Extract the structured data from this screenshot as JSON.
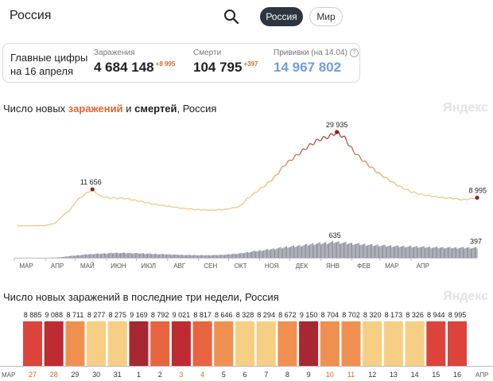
{
  "search": {
    "value": "Россия"
  },
  "scope": {
    "russia": "Россия",
    "world": "Мир"
  },
  "summary": {
    "label_line1": "Главные цифры",
    "label_line2": "на 16 апреля",
    "infections": {
      "caption": "Заражения",
      "value": "4 684 148",
      "delta": "+8 995"
    },
    "deaths": {
      "caption": "Смерти",
      "value": "104 795",
      "delta": "+397"
    },
    "vaccinations": {
      "caption": "Прививки (на 14.04)",
      "value": "14 967 802",
      "help": "?"
    }
  },
  "watermark": "Яндекс",
  "colors": {
    "infections_light": "#f2c57a",
    "infections_dark": "#b23a2e",
    "deaths": "#6b6f80",
    "accent": "#e0672d",
    "vaccine": "#6e9fe0"
  },
  "chart_data": [
    {
      "type": "line",
      "title_parts": [
        "Число новых ",
        "заражений",
        " и ",
        "смертей",
        ", Россия"
      ],
      "months": [
        "МАР",
        "АПР",
        "МАЙ",
        "ИЮН",
        "ИЮЛ",
        "АВГ",
        "СЕН",
        "ОКТ",
        "НОЯ",
        "ДЕК",
        "ЯНВ",
        "ФЕВ",
        "МАР",
        "АПР"
      ],
      "series": [
        {
          "name": "заражений",
          "points": [
            [
              3,
              0
            ],
            [
              30,
              100
            ],
            [
              40,
              700
            ],
            [
              43,
              1500
            ],
            [
              48,
              3200
            ],
            [
              56,
              5200
            ],
            [
              62,
              8000
            ],
            [
              66,
              9000
            ],
            [
              72,
              10400
            ],
            [
              78,
              11656
            ],
            [
              85,
              9600
            ],
            [
              95,
              8900
            ],
            [
              110,
              8800
            ],
            [
              125,
              7900
            ],
            [
              140,
              6900
            ],
            [
              155,
              6200
            ],
            [
              168,
              5600
            ],
            [
              182,
              5200
            ],
            [
              196,
              5000
            ],
            [
              212,
              5300
            ],
            [
              225,
              6200
            ],
            [
              232,
              8500
            ],
            [
              240,
              10500
            ],
            [
              250,
              12800
            ],
            [
              260,
              15600
            ],
            [
              270,
              19500
            ],
            [
              282,
              22500
            ],
            [
              294,
              25500
            ],
            [
              304,
              27500
            ],
            [
              314,
              28500
            ],
            [
              322,
              29935
            ],
            [
              330,
              28000
            ],
            [
              338,
              24000
            ],
            [
              346,
              21500
            ],
            [
              355,
              19000
            ],
            [
              365,
              16500
            ],
            [
              375,
              14500
            ],
            [
              385,
              12500
            ],
            [
              395,
              11000
            ],
            [
              405,
              10100
            ],
            [
              416,
              9500
            ],
            [
              428,
              9000
            ],
            [
              440,
              8700
            ],
            [
              448,
              8300
            ],
            [
              456,
              8700
            ],
            [
              462,
              8995
            ]
          ]
        },
        {
          "name": "смертей",
          "points": [
            [
              3,
              0
            ],
            [
              34,
              2
            ],
            [
              41,
              5
            ],
            [
              48,
              30
            ],
            [
              56,
              70
            ],
            [
              64,
              100
            ],
            [
              72,
              130
            ],
            [
              80,
              150
            ],
            [
              90,
              170
            ],
            [
              100,
              190
            ],
            [
              110,
              190
            ],
            [
              125,
              175
            ],
            [
              140,
              150
            ],
            [
              155,
              130
            ],
            [
              170,
              110
            ],
            [
              185,
              100
            ],
            [
              195,
              98
            ],
            [
              210,
              120
            ],
            [
              225,
              170
            ],
            [
              240,
              260
            ],
            [
              255,
              330
            ],
            [
              270,
              420
            ],
            [
              285,
              480
            ],
            [
              300,
              560
            ],
            [
              314,
              600
            ],
            [
              320,
              635
            ],
            [
              330,
              590
            ],
            [
              345,
              540
            ],
            [
              360,
              500
            ],
            [
              380,
              460
            ],
            [
              400,
              440
            ],
            [
              420,
              410
            ],
            [
              440,
              397
            ],
            [
              462,
              397
            ]
          ]
        }
      ],
      "annotations": [
        {
          "series": "заражений",
          "value": 11656,
          "label": "11 656"
        },
        {
          "series": "заражений",
          "value": 29935,
          "label": "29 935"
        },
        {
          "series": "заражений",
          "value": 8995,
          "label": "8 995"
        },
        {
          "series": "смертей",
          "value": 635,
          "label": "635"
        },
        {
          "series": "смертей",
          "value": 397,
          "label": "397"
        }
      ]
    },
    {
      "type": "bar",
      "title": "Число новых заражений в последние три недели, Россия",
      "start_month": "МАР",
      "end_month": "АПР",
      "categories": [
        "27",
        "28",
        "29",
        "30",
        "31",
        "1",
        "2",
        "3",
        "4",
        "5",
        "6",
        "7",
        "8",
        "9",
        "10",
        "11",
        "12",
        "13",
        "14",
        "15",
        "16"
      ],
      "weekend_days": [
        "27",
        "28",
        "3",
        "4",
        "10",
        "11"
      ],
      "values": [
        8885,
        9088,
        8711,
        8277,
        8275,
        9169,
        8792,
        9021,
        8817,
        8646,
        8328,
        8294,
        8672,
        9150,
        8704,
        8702,
        8320,
        8173,
        8326,
        8944,
        8995
      ],
      "labels": [
        "8 885",
        "9 088",
        "8 711",
        "8 277",
        "8 275",
        "9 169",
        "8 792",
        "9 021",
        "8 817",
        "8 646",
        "8 328",
        "8 294",
        "8 672",
        "9 150",
        "8 704",
        "8 702",
        "8 320",
        "8 173",
        "8 326",
        "8 944",
        "8 995"
      ]
    }
  ]
}
